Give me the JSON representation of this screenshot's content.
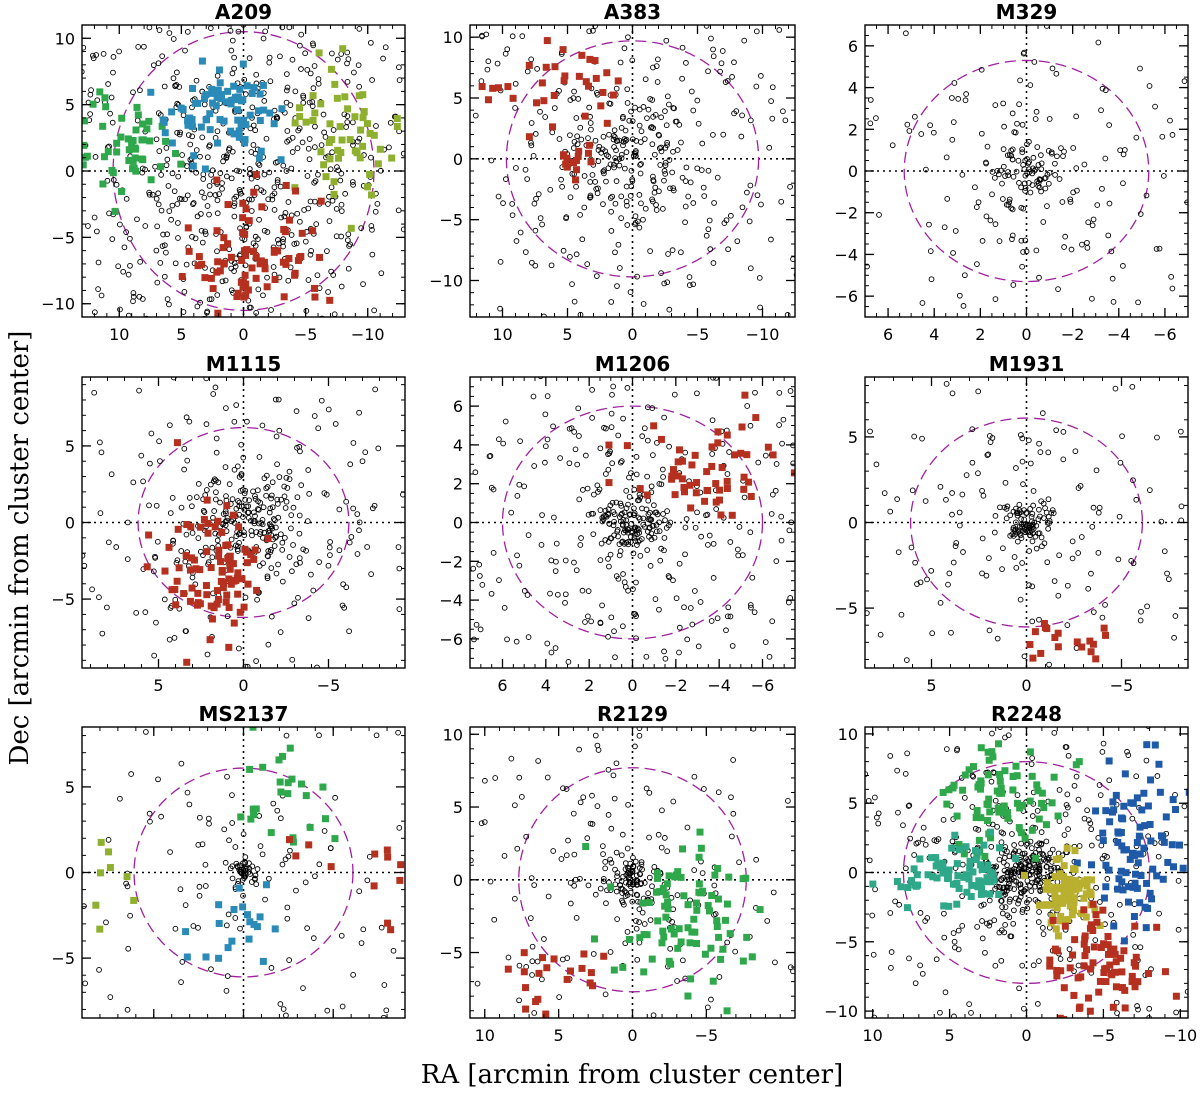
{
  "figure": {
    "xlabel": "RA [arcmin from cluster center]",
    "ylabel": "Dec [arcmin from cluster center]"
  },
  "colors": {
    "open_circle": "#000000",
    "r200_circle": "#a020a0",
    "frame": "#000000",
    "green": "#2ea84a",
    "lime": "#8fb02e",
    "blue": "#2a8ab8",
    "red": "#b5301f",
    "navy": "#1f5aa8",
    "teal": "#2fa88a",
    "olive": "#b8b02e"
  },
  "chart_data": [
    {
      "type": "scatter",
      "title": "A209",
      "xlim": [
        13,
        -13
      ],
      "ylim": [
        -11,
        11
      ],
      "xticks": [
        10,
        5,
        0,
        -5,
        -10
      ],
      "yticks": [
        -10,
        -5,
        0,
        5,
        10
      ],
      "circle_radius": 10.5,
      "show_xlabels": true,
      "members": {
        "n": 620,
        "core": 5,
        "spread": 8
      },
      "groups": [
        {
          "color": "green",
          "cx": 9.5,
          "cy": 1.8,
          "sx": 2.2,
          "sy": 1.8,
          "n": 55
        },
        {
          "color": "blue",
          "cx": 1.8,
          "cy": 4.5,
          "sx": 2.2,
          "sy": 1.6,
          "n": 80
        },
        {
          "color": "lime",
          "cx": -8.5,
          "cy": 2.5,
          "sx": 2.2,
          "sy": 3.0,
          "n": 55
        },
        {
          "color": "red",
          "cx": -0.5,
          "cy": -6.0,
          "sx": 2.6,
          "sy": 2.2,
          "n": 80
        }
      ]
    },
    {
      "type": "scatter",
      "title": "A383",
      "xlim": [
        12.5,
        -12.5
      ],
      "ylim": [
        -13,
        11
      ],
      "xticks": [
        10,
        5,
        0,
        -5,
        -10
      ],
      "yticks": [
        -10,
        -5,
        0,
        5,
        10
      ],
      "circle_radius": 9.7,
      "show_xlabels": true,
      "members": {
        "n": 400,
        "core": 3,
        "spread": 6
      },
      "groups": [
        {
          "color": "red",
          "cx": 5.5,
          "cy": 5.0,
          "sx": 2.5,
          "sy": 2.2,
          "n": 30
        },
        {
          "color": "red",
          "cx": 11.5,
          "cy": 5.5,
          "sx": 0.8,
          "sy": 0.6,
          "n": 4
        },
        {
          "color": "red",
          "cx": 4.5,
          "cy": -0.5,
          "sx": 0.9,
          "sy": 1.0,
          "n": 14
        }
      ]
    },
    {
      "type": "scatter",
      "title": "M329",
      "xlim": [
        7,
        -7
      ],
      "ylim": [
        -7,
        7
      ],
      "xticks": [
        6,
        4,
        2,
        0,
        -2,
        -4,
        -6
      ],
      "yticks": [
        -6,
        -4,
        -2,
        0,
        2,
        4,
        6
      ],
      "circle_radius": 5.3,
      "show_xlabels": true,
      "members": {
        "n": 230,
        "core": 0.8,
        "spread": 3.2
      },
      "groups": []
    },
    {
      "type": "scatter",
      "title": "M1115",
      "xlim": [
        9.5,
        -9.5
      ],
      "ylim": [
        -9.5,
        9.5
      ],
      "xticks": [
        5,
        0,
        -5
      ],
      "yticks": [
        -5,
        0,
        5
      ],
      "circle_radius": 6.2,
      "show_xlabels": true,
      "members": {
        "n": 380,
        "core": 1.5,
        "spread": 4.5
      },
      "groups": [
        {
          "color": "red",
          "cx": 1.8,
          "cy": -3.0,
          "sx": 1.5,
          "sy": 2.2,
          "n": 90
        }
      ]
    },
    {
      "type": "scatter",
      "title": "M1206",
      "xlim": [
        7.5,
        -7.5
      ],
      "ylim": [
        -7.5,
        7.5
      ],
      "xticks": [
        6,
        4,
        2,
        0,
        -2,
        -4,
        -6
      ],
      "yticks": [
        -6,
        -4,
        -2,
        0,
        2,
        4,
        6
      ],
      "circle_radius": 6.0,
      "show_xlabels": true,
      "members": {
        "n": 400,
        "core": 0.8,
        "spread": 3.5
      },
      "groups": [
        {
          "color": "red",
          "cx": -3.5,
          "cy": 2.5,
          "sx": 1.8,
          "sy": 1.6,
          "n": 55
        }
      ]
    },
    {
      "type": "scatter",
      "title": "M1931",
      "xlim": [
        8.5,
        -8.5
      ],
      "ylim": [
        -8.5,
        8.5
      ],
      "xticks": [
        5,
        0,
        -5
      ],
      "yticks": [
        -5,
        0,
        5
      ],
      "circle_radius": 6.1,
      "show_xlabels": true,
      "members": {
        "n": 230,
        "core": 0.6,
        "spread": 3.5
      },
      "groups": [
        {
          "color": "red",
          "cx": -2.2,
          "cy": -7.2,
          "sx": 1.2,
          "sy": 0.6,
          "n": 18
        }
      ]
    },
    {
      "type": "scatter",
      "title": "MS2137",
      "xlim": [
        9,
        -9
      ],
      "ylim": [
        -8.5,
        8.5
      ],
      "xticks": [
        5,
        0,
        -5
      ],
      "yticks": [
        -5,
        0,
        5
      ],
      "circle_radius": 6.1,
      "show_xlabels": false,
      "members": {
        "n": 150,
        "core": 0.5,
        "spread": 3.0
      },
      "groups": [
        {
          "color": "green",
          "cx": -2.0,
          "cy": 4.5,
          "sx": 1.4,
          "sy": 2.0,
          "n": 25
        },
        {
          "color": "lime",
          "cx": 7.0,
          "cy": 1.0,
          "sx": 0.8,
          "sy": 1.8,
          "n": 8
        },
        {
          "color": "blue",
          "cx": 0.5,
          "cy": -3.5,
          "sx": 1.6,
          "sy": 1.2,
          "n": 20
        },
        {
          "color": "red",
          "cx": -8.0,
          "cy": -1.8,
          "sx": 0.6,
          "sy": 1.2,
          "n": 8
        },
        {
          "color": "red",
          "cx": -2.8,
          "cy": 0.8,
          "sx": 1.0,
          "sy": 0.8,
          "n": 4
        }
      ]
    },
    {
      "type": "scatter",
      "title": "R2129",
      "xlim": [
        11,
        -11
      ],
      "ylim": [
        -9.5,
        10.5
      ],
      "xticks": [
        10,
        5,
        0,
        -5
      ],
      "yticks": [
        -5,
        0,
        5,
        10
      ],
      "circle_radius": 7.7,
      "show_xlabels": true,
      "members": {
        "n": 260,
        "core": 0.8,
        "spread": 4.5
      },
      "groups": [
        {
          "color": "green",
          "cx": -3.5,
          "cy": -2.5,
          "sx": 2.3,
          "sy": 2.8,
          "n": 85
        },
        {
          "color": "red",
          "cx": 5.0,
          "cy": -7.0,
          "sx": 2.0,
          "sy": 1.6,
          "n": 20
        }
      ]
    },
    {
      "type": "scatter",
      "title": "R2248",
      "xlim": [
        10.5,
        -10.5
      ],
      "ylim": [
        -10.5,
        10.5
      ],
      "xticks": [
        10,
        5,
        0,
        -5,
        -10
      ],
      "yticks": [
        -10,
        -5,
        0,
        5,
        10
      ],
      "circle_radius": 8.0,
      "show_xlabels": true,
      "members": {
        "n": 520,
        "core": 1.2,
        "spread": 4.2
      },
      "groups": [
        {
          "color": "green",
          "cx": 1.8,
          "cy": 5.5,
          "sx": 1.8,
          "sy": 2.3,
          "n": 80
        },
        {
          "color": "navy",
          "cx": -7.0,
          "cy": 2.0,
          "sx": 1.6,
          "sy": 3.2,
          "n": 90
        },
        {
          "color": "teal",
          "cx": 4.5,
          "cy": -0.3,
          "sx": 1.8,
          "sy": 1.1,
          "n": 75
        },
        {
          "color": "olive",
          "cx": -2.5,
          "cy": -1.5,
          "sx": 1.0,
          "sy": 1.2,
          "n": 80
        },
        {
          "color": "red",
          "cx": -5.0,
          "cy": -6.5,
          "sx": 1.8,
          "sy": 2.0,
          "n": 80
        }
      ]
    }
  ]
}
